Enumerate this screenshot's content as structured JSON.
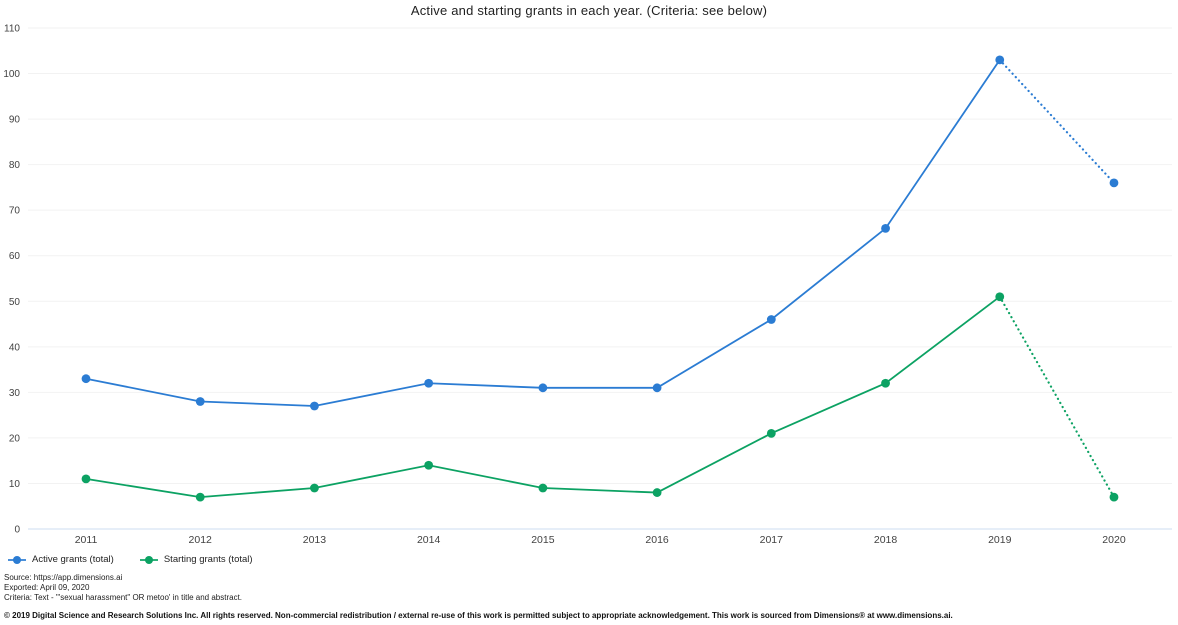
{
  "chart_data": {
    "type": "line",
    "title": "Active and starting grants in each year. (Criteria: see below)",
    "categories": [
      "2011",
      "2012",
      "2013",
      "2014",
      "2015",
      "2016",
      "2017",
      "2018",
      "2019",
      "2020"
    ],
    "series": [
      {
        "name": "Active grants (total)",
        "color": "#2b7cd3",
        "values": [
          33,
          28,
          27,
          32,
          31,
          31,
          46,
          66,
          103,
          76
        ],
        "dotted_from": 8
      },
      {
        "name": "Starting grants (total)",
        "color": "#0ca263",
        "values": [
          11,
          7,
          9,
          14,
          9,
          8,
          21,
          32,
          51,
          7
        ],
        "dotted_from": 8
      }
    ],
    "xlabel": "",
    "ylabel": "",
    "ylim": [
      0,
      110
    ],
    "ytick_step": 10,
    "grid": true,
    "legend_position": "bottom-left",
    "colors": {
      "gridline": "#f2f2f2",
      "axis_line": "#cdddf0"
    }
  },
  "footer": {
    "source_line": "Source: https://app.dimensions.ai",
    "exported_line": "Exported: April 09, 2020",
    "criteria_line": "Criteria: Text - '\"sexual harassment\" OR metoo' in title and abstract.",
    "copyright_line": "© 2019 Digital Science and Research Solutions Inc. All rights reserved. Non-commercial redistribution / external re-use of this work is permitted subject to appropriate acknowledgement. This work is sourced from Dimensions® at www.dimensions.ai."
  }
}
